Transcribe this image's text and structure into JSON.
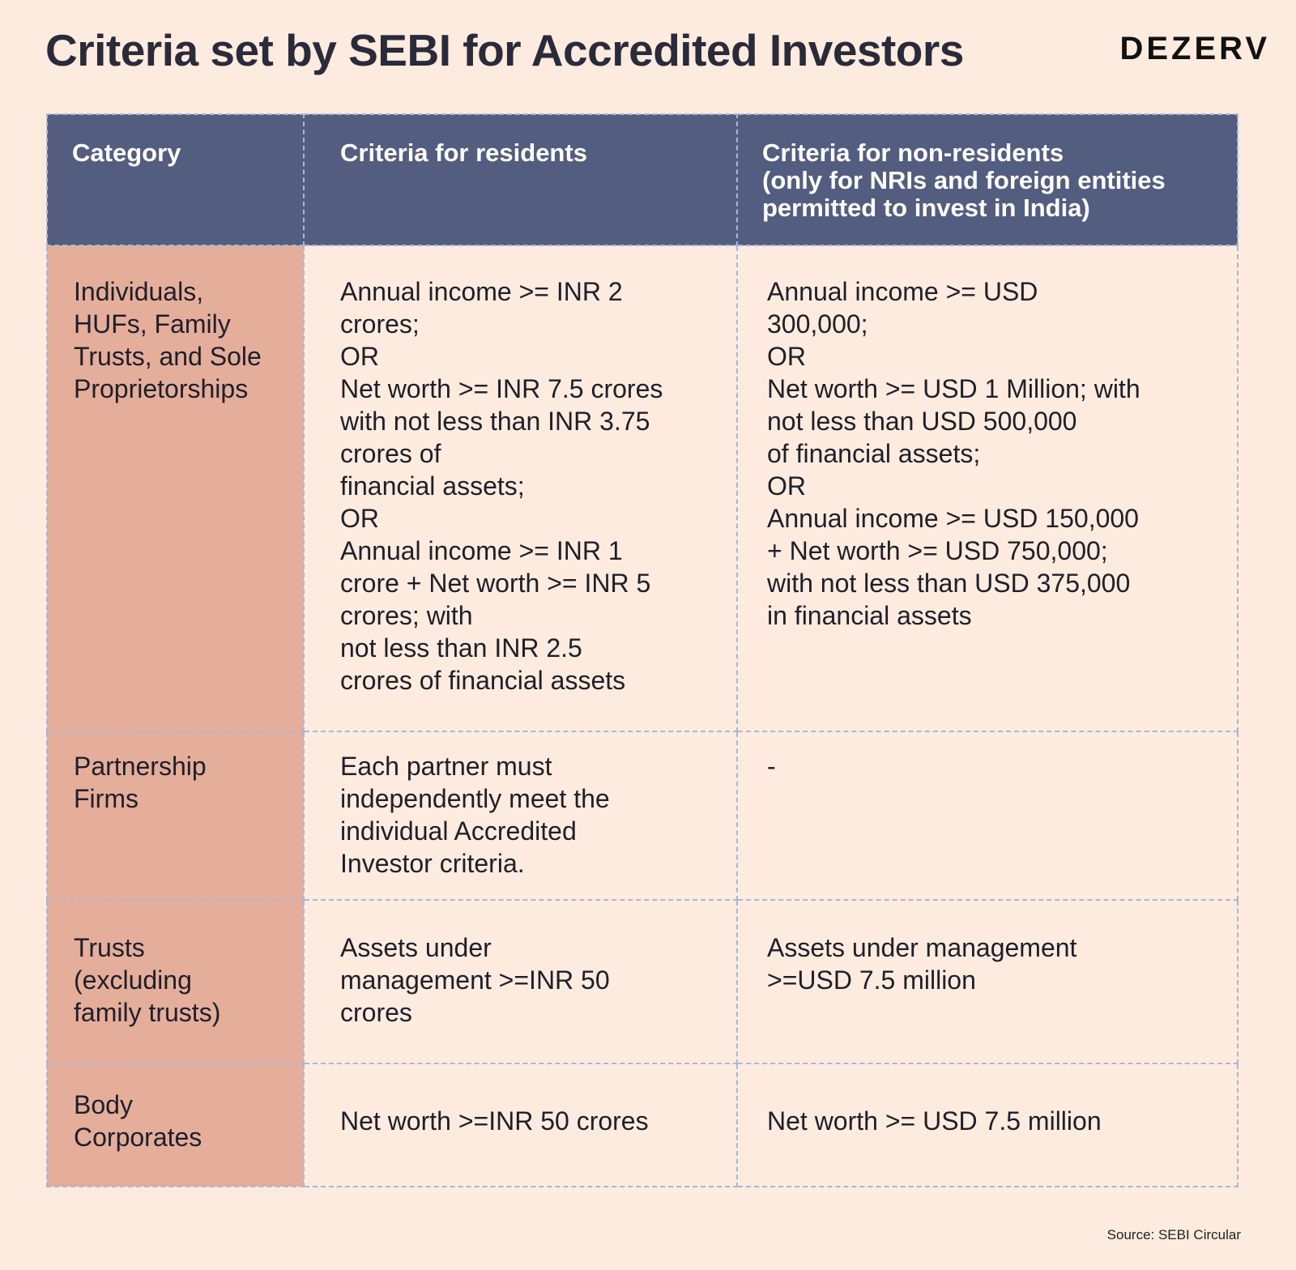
{
  "header": {
    "title": "Criteria set by SEBI for Accredited Investors",
    "brand": "DEZERV"
  },
  "table": {
    "headers": {
      "category": "Category",
      "residents": "Criteria for residents",
      "non_residents": [
        "Criteria for non-residents",
        "(only for NRIs and foreign entities",
        "permitted to invest in India)"
      ]
    },
    "rows": [
      {
        "category": [
          "Individuals,",
          "HUFs, Family",
          "Trusts, and Sole",
          "Proprietorships"
        ],
        "residents": [
          "Annual income >= INR 2",
          "crores;",
          "OR",
          "Net worth >= INR 7.5 crores",
          "with not less than INR 3.75",
          "crores of",
          "financial assets;",
          "OR",
          "Annual income >= INR 1",
          "crore + Net worth >= INR 5",
          "crores; with",
          "not less than INR 2.5",
          "crores of financial assets"
        ],
        "non_residents": [
          "Annual income >= USD",
          "300,000;",
          "OR",
          "Net worth >= USD 1 Million; with",
          "not less than USD 500,000",
          "of financial assets;",
          "OR",
          "Annual income >= USD 150,000",
          "+ Net worth >= USD 750,000;",
          "with not less than USD 375,000",
          "in financial assets"
        ]
      },
      {
        "category": [
          "Partnership",
          "Firms"
        ],
        "residents": [
          "Each partner must",
          "independently meet the",
          "individual Accredited",
          "Investor criteria."
        ],
        "non_residents": [
          "-"
        ]
      },
      {
        "category": [
          "Trusts",
          "(excluding",
          "family trusts)"
        ],
        "residents": [
          "Assets under",
          "management >=INR 50",
          "crores"
        ],
        "non_residents": [
          "Assets under management",
          ">=USD 7.5 million"
        ]
      },
      {
        "category": [
          "Body",
          "Corporates"
        ],
        "residents": [
          "Net worth >=INR 50 crores"
        ],
        "non_residents": [
          "Net worth >= USD 7.5 million"
        ]
      }
    ]
  },
  "footer": {
    "source": "Source: SEBI Circular"
  },
  "colors": {
    "background": "#fdebdf",
    "header_fill": "#535d80",
    "category_fill": "#e4ae9b",
    "border": "#a9b6d8"
  }
}
